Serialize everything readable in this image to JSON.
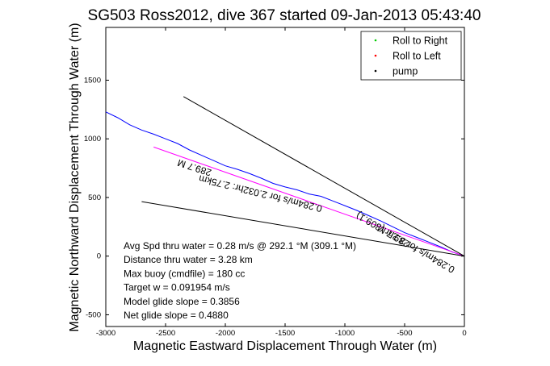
{
  "chart_data": {
    "type": "line",
    "title": "SG503 Ross2012, dive 367 started 09-Jan-2013 05:43:40",
    "xlabel": "Magnetic Eastward Displacement Through Water (m)",
    "ylabel": "Magnetic Northward Displacement Through Water (m)",
    "xlim": [
      -3000,
      0
    ],
    "ylim": [
      -600,
      1950
    ],
    "xticks": [
      -3000,
      -2500,
      -2000,
      -1500,
      -1000,
      -500,
      0
    ],
    "yticks": [
      -500,
      0,
      500,
      1000,
      1500
    ],
    "grid": false,
    "legend": {
      "placement": "top-right",
      "entries": [
        {
          "label": "Roll to Right",
          "color": "#00cc00",
          "marker": "."
        },
        {
          "label": "Roll to Left",
          "color": "#ff0000",
          "marker": "."
        },
        {
          "label": "pump",
          "color": "#000000",
          "marker": "."
        }
      ]
    },
    "series": [
      {
        "color": "#0000ff",
        "style": "line",
        "x": [
          -3000,
          -2900,
          -2800,
          -2700,
          -2600,
          -2500,
          -2400,
          -2300,
          -2200,
          -2100,
          -2000,
          -1900,
          -1800,
          -1700,
          -1600,
          -1500,
          -1400,
          -1300,
          -1200,
          -1100,
          -1000,
          -900,
          -800,
          -700,
          -600,
          -500,
          -400,
          -300,
          -200,
          -100,
          0
        ],
        "y": [
          1230,
          1180,
          1120,
          1075,
          1040,
          1000,
          960,
          905,
          860,
          815,
          770,
          740,
          705,
          665,
          620,
          590,
          565,
          530,
          510,
          470,
          430,
          390,
          345,
          300,
          250,
          200,
          160,
          120,
          80,
          35,
          0
        ]
      },
      {
        "color": "#ff00ff",
        "style": "line",
        "x": [
          -2600,
          0
        ],
        "y": [
          930,
          0
        ]
      },
      {
        "color": "#000000",
        "style": "line",
        "x": [
          -2350,
          0
        ],
        "y": [
          1360,
          0
        ]
      },
      {
        "color": "#000000",
        "style": "line",
        "x": [
          -2700,
          0
        ],
        "y": [
          465,
          0
        ]
      }
    ],
    "line_labels": [
      {
        "text": "289.7 M",
        "x": -2250,
        "y": 780,
        "angle": 18
      },
      {
        "text": "0.284m/s for 2.032hr: 2.75km",
        "x": -1700,
        "y": 560,
        "angle": 14
      },
      {
        "text": "289.7 M",
        "x": -580,
        "y": 195,
        "angle": 30
      },
      {
        "text": "0.284m/s for 3.2hr (309.1)",
        "x": -480,
        "y": 140,
        "angle": 30
      }
    ],
    "annotations": [
      "Avg Spd thru water =  0.28 m/s @ 292.1    °M (309.1 °M)",
      "Distance thru water =  3.28 km",
      "Max buoy (cmdfile) = 180 cc",
      "Target w = 0.091954 m/s",
      "Model glide slope = 0.3856",
      "Net glide slope = 0.4880"
    ]
  }
}
